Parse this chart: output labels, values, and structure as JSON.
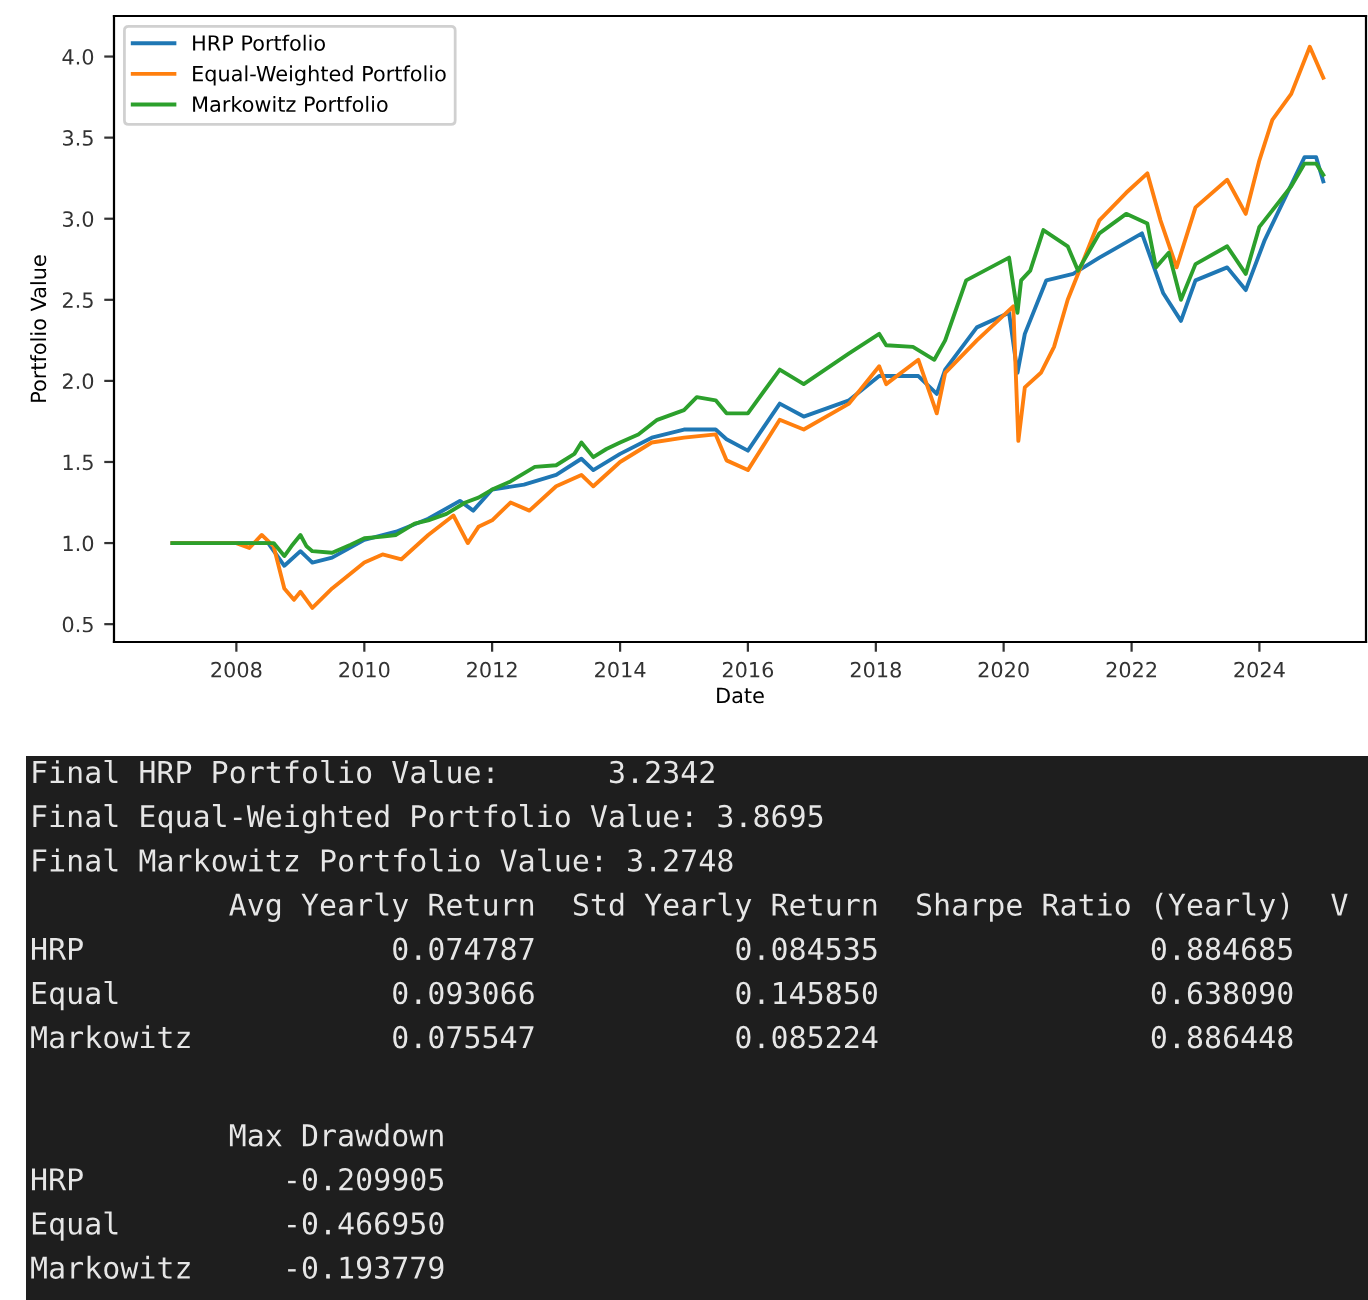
{
  "chart_data": {
    "type": "line",
    "xlabel": "Date",
    "ylabel": "Portfolio Value",
    "xlim": [
      "2006-02",
      "2025-09"
    ],
    "ylim": [
      0.39,
      4.25
    ],
    "xticks": [
      {
        "value": "2008",
        "label": "2008"
      },
      {
        "value": "2010",
        "label": "2010"
      },
      {
        "value": "2012",
        "label": "2012"
      },
      {
        "value": "2014",
        "label": "2014"
      },
      {
        "value": "2016",
        "label": "2016"
      },
      {
        "value": "2018",
        "label": "2018"
      },
      {
        "value": "2020",
        "label": "2020"
      },
      {
        "value": "2022",
        "label": "2022"
      },
      {
        "value": "2024",
        "label": "2024"
      }
    ],
    "yticks": [
      0.5,
      {
        "value": 1,
        "label": "1.0"
      },
      1.5,
      {
        "value": 2,
        "label": "2.0"
      },
      2.5,
      {
        "value": 3,
        "label": "3.0"
      },
      3.5,
      {
        "value": 4,
        "label": "4.0"
      }
    ],
    "grid": false,
    "legend": "top left",
    "marker": "none",
    "line_style": "solid",
    "series": [
      {
        "name": "HRP Portfolio",
        "color": "#1f77b4",
        "x": [
          "2007-01-01",
          "2008-01-01",
          "2008-07-01",
          "2008-10-01",
          "2009-01-01",
          "2009-03-10",
          "2009-07-01",
          "2010-01-01",
          "2010-07-01",
          "2011-01-01",
          "2011-07-01",
          "2011-09-15",
          "2012-01-01",
          "2012-07-01",
          "2013-01-01",
          "2013-05-25",
          "2013-08-01",
          "2014-01-01",
          "2014-07-01",
          "2015-01-01",
          "2015-07-01",
          "2015-09-01",
          "2016-01-01",
          "2016-07-01",
          "2016-11-15",
          "2017-08-01",
          "2018-01-20",
          "2018-09-01",
          "2018-12-15",
          "2019-02-01",
          "2019-08-01",
          "2020-02-01",
          "2020-03-20",
          "2020-05-01",
          "2020-09-01",
          "2021-02-01",
          "2021-07-01",
          "2022-03-01",
          "2022-07-01",
          "2022-10-10",
          "2023-01-01",
          "2023-07-01",
          "2023-10-15",
          "2024-02-01",
          "2024-09-15",
          "2024-11-20",
          "2024-12-31"
        ],
        "values": [
          1.0,
          1.0,
          1.0,
          0.86,
          0.95,
          0.88,
          0.91,
          1.02,
          1.07,
          1.15,
          1.26,
          1.2,
          1.33,
          1.36,
          1.42,
          1.52,
          1.45,
          1.55,
          1.65,
          1.7,
          1.7,
          1.64,
          1.57,
          1.86,
          1.78,
          1.88,
          2.03,
          2.03,
          1.92,
          2.07,
          2.33,
          2.42,
          2.05,
          2.29,
          2.62,
          2.66,
          2.76,
          2.91,
          2.54,
          2.37,
          2.62,
          2.7,
          2.56,
          2.87,
          3.38,
          3.38,
          3.23
        ]
      },
      {
        "name": "Equal-Weighted Portfolio",
        "color": "#ff7f0e",
        "x": [
          "2007-01-01",
          "2008-01-01",
          "2008-03-15",
          "2008-05-25",
          "2008-08-01",
          "2008-10-01",
          "2008-11-25",
          "2009-01-01",
          "2009-03-10",
          "2009-07-01",
          "2010-01-01",
          "2010-04-15",
          "2010-08-01",
          "2011-01-01",
          "2011-05-25",
          "2011-08-15",
          "2011-10-15",
          "2012-01-01",
          "2012-04-15",
          "2012-08-01",
          "2013-01-01",
          "2013-05-25",
          "2013-08-01",
          "2014-01-01",
          "2014-07-01",
          "2015-01-01",
          "2015-07-01",
          "2015-09-01",
          "2016-01-01",
          "2016-07-01",
          "2016-11-15",
          "2017-08-01",
          "2018-01-20",
          "2018-03-01",
          "2018-09-01",
          "2018-12-15",
          "2019-02-01",
          "2019-08-01",
          "2020-02-25",
          "2020-03-25",
          "2020-05-01",
          "2020-08-01",
          "2020-10-15",
          "2021-01-01",
          "2021-07-01",
          "2021-12-01",
          "2022-04-01",
          "2022-06-15",
          "2022-09-15",
          "2023-01-01",
          "2023-07-01",
          "2023-10-15",
          "2024-01-01",
          "2024-03-15",
          "2024-07-01",
          "2024-10-15",
          "2024-12-31"
        ],
        "values": [
          1.0,
          1.0,
          0.97,
          1.05,
          0.98,
          0.72,
          0.65,
          0.7,
          0.6,
          0.72,
          0.88,
          0.93,
          0.9,
          1.05,
          1.17,
          1.0,
          1.1,
          1.14,
          1.25,
          1.2,
          1.35,
          1.42,
          1.35,
          1.5,
          1.62,
          1.65,
          1.67,
          1.51,
          1.45,
          1.76,
          1.7,
          1.86,
          2.09,
          1.98,
          2.13,
          1.8,
          2.05,
          2.25,
          2.46,
          1.63,
          1.96,
          2.05,
          2.21,
          2.5,
          2.99,
          3.16,
          3.28,
          2.99,
          2.7,
          3.07,
          3.24,
          3.03,
          3.36,
          3.61,
          3.77,
          4.06,
          3.87
        ]
      },
      {
        "name": "Markowitz Portfolio",
        "color": "#2ca02c",
        "x": [
          "2007-01-01",
          "2008-01-01",
          "2008-05-01",
          "2008-08-01",
          "2008-10-01",
          "2008-11-10",
          "2009-01-01",
          "2009-02-05",
          "2009-03-10",
          "2009-07-01",
          "2009-10-15",
          "2010-01-01",
          "2010-04-15",
          "2010-07-01",
          "2010-10-15",
          "2011-01-01",
          "2011-04-15",
          "2011-08-01",
          "2011-10-15",
          "2012-01-01",
          "2012-04-15",
          "2012-09-01",
          "2013-01-01",
          "2013-04-15",
          "2013-05-25",
          "2013-08-01",
          "2013-10-15",
          "2014-01-01",
          "2014-04-15",
          "2014-08-01",
          "2015-01-01",
          "2015-03-15",
          "2015-07-01",
          "2015-09-01",
          "2016-01-01",
          "2016-07-01",
          "2016-11-15",
          "2017-08-01",
          "2018-01-20",
          "2018-03-01",
          "2018-08-01",
          "2018-12-01",
          "2019-02-01",
          "2019-06-01",
          "2020-02-01",
          "2020-03-20",
          "2020-04-10",
          "2020-06-01",
          "2020-08-15",
          "2021-01-01",
          "2021-03-01",
          "2021-07-01",
          "2021-12-01",
          "2022-04-01",
          "2022-05-20",
          "2022-08-01",
          "2022-10-10",
          "2023-01-01",
          "2023-07-01",
          "2023-10-15",
          "2024-01-01",
          "2024-07-01",
          "2024-09-15",
          "2024-11-20",
          "2024-12-31"
        ],
        "values": [
          1.0,
          1.0,
          1.0,
          1.0,
          0.92,
          0.98,
          1.05,
          0.98,
          0.95,
          0.94,
          0.99,
          1.03,
          1.04,
          1.05,
          1.12,
          1.14,
          1.18,
          1.25,
          1.28,
          1.33,
          1.38,
          1.47,
          1.48,
          1.55,
          1.62,
          1.53,
          1.58,
          1.62,
          1.67,
          1.76,
          1.82,
          1.9,
          1.88,
          1.8,
          1.8,
          2.07,
          1.98,
          2.17,
          2.29,
          2.22,
          2.21,
          2.13,
          2.25,
          2.62,
          2.76,
          2.42,
          2.62,
          2.68,
          2.93,
          2.83,
          2.68,
          2.91,
          3.03,
          2.97,
          2.7,
          2.79,
          2.5,
          2.72,
          2.83,
          2.66,
          2.95,
          3.2,
          3.34,
          3.34,
          3.27
        ]
      }
    ],
    "annotations": [
      "Final HRP Portfolio Value:      3.2342\nFinal Equal-Weighted Portfolio Value: 3.8695\nFinal Markowitz Portfolio Value: 3.2748\n           Avg Yearly Return  Std Yearly Return  Sharpe Ratio (Yearly)  V\nHRP                 0.074787           0.084535               0.884685\nEqual               0.093066           0.145850               0.638090\nMarkowitz           0.075547           0.085224               0.886448",
      "           Max Drawdown\nHRP           -0.209905\nEqual         -0.466950\nMarkowitz     -0.193779"
    ]
  }
}
